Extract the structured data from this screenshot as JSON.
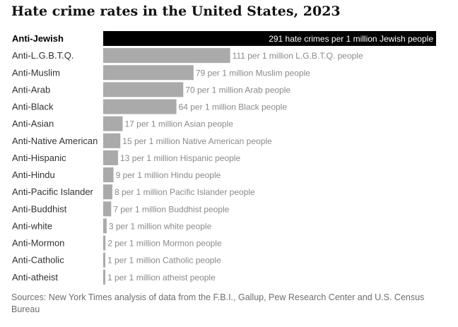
{
  "chart_data": {
    "type": "bar",
    "orientation": "horizontal",
    "title": "Hate crime rates in the United States, 2023",
    "unit_note": "hate crimes per 1 million people of each group",
    "categories": [
      "Anti-Jewish",
      "Anti-L.G.B.T.Q.",
      "Anti-Muslim",
      "Anti-Arab",
      "Anti-Black",
      "Anti-Asian",
      "Anti-Native American",
      "Anti-Hispanic",
      "Anti-Hindu",
      "Anti-Pacific Islander",
      "Anti-Buddhist",
      "Anti-white",
      "Anti-Mormon",
      "Anti-Catholic",
      "Anti-atheist"
    ],
    "values": [
      291,
      111,
      79,
      70,
      64,
      17,
      15,
      13,
      9,
      8,
      7,
      3,
      2,
      1,
      1
    ],
    "labels": [
      "291 hate crimes per 1 million Jewish people",
      "111 per 1 million L.G.B.T.Q. people",
      "79 per 1 million Muslim people",
      "70 per 1 million Arab people",
      "64 per 1 million Black people",
      "17 per 1 million Asian people",
      "15 per 1 million Native American people",
      "13 per 1 million Hispanic people",
      "9 per 1 million Hindu people",
      "8 per 1 million Pacific Islander people",
      "7 per 1 million Buddhist people",
      "3 per 1 million white people",
      "2 per 1 million Mormon people",
      "1 per 1 million Catholic people",
      "1 per 1 million atheist people"
    ],
    "highlight_index": 0,
    "xlim": [
      0,
      291
    ],
    "colors": {
      "highlight_bar": "#000000",
      "bar": "#aaaaaa",
      "highlight_label": "#ffffff",
      "label": "#8a8a8a",
      "category": "#333333",
      "highlight_category": "#000000"
    }
  },
  "source": "Sources: New York Times analysis of data from the F.B.I., Gallup, Pew Research Center and U.S. Census Bureau"
}
